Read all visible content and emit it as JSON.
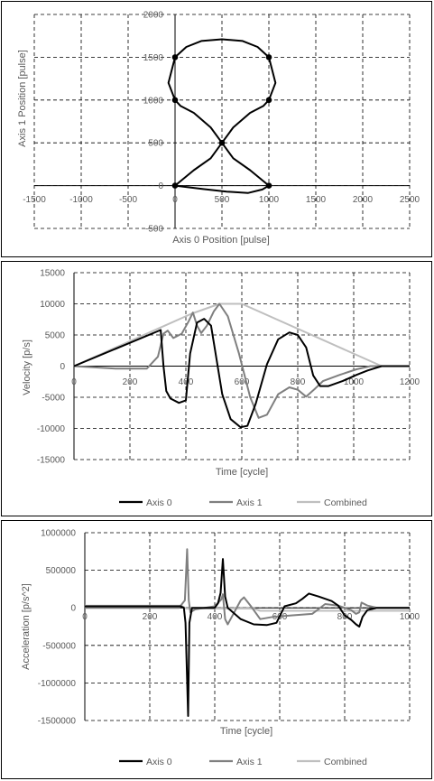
{
  "colors": {
    "axis0": "#000000",
    "axis1": "#7f7f7f",
    "combined": "#bfbfbf",
    "grid": "#000000",
    "text": "#595959"
  },
  "chart_data": [
    {
      "type": "scatter",
      "xlabel": "Axis 0 Position [pulse]",
      "ylabel": "Axis 1 Position [pulse]",
      "xlim": [
        -1500,
        2500
      ],
      "ylim": [
        -500,
        2000
      ],
      "xticks": [
        -1500,
        -1000,
        -500,
        0,
        500,
        1000,
        1500,
        2000,
        2500
      ],
      "yticks": [
        -500,
        0,
        500,
        1000,
        1500,
        2000
      ],
      "grid": true,
      "curve": [
        [
          0,
          0
        ],
        [
          300,
          -40
        ],
        [
          550,
          -70
        ],
        [
          780,
          -85
        ],
        [
          930,
          -45
        ],
        [
          1000,
          0
        ],
        [
          800,
          180
        ],
        [
          620,
          320
        ],
        [
          500,
          500
        ],
        [
          380,
          680
        ],
        [
          200,
          850
        ],
        [
          60,
          930
        ],
        [
          0,
          1000
        ],
        [
          -70,
          1200
        ],
        [
          0,
          1500
        ],
        [
          120,
          1620
        ],
        [
          280,
          1690
        ],
        [
          500,
          1710
        ],
        [
          720,
          1690
        ],
        [
          880,
          1620
        ],
        [
          1000,
          1500
        ],
        [
          1070,
          1200
        ],
        [
          1000,
          1000
        ],
        [
          940,
          930
        ],
        [
          800,
          850
        ],
        [
          620,
          680
        ],
        [
          500,
          500
        ],
        [
          380,
          320
        ],
        [
          200,
          180
        ],
        [
          0,
          0
        ]
      ],
      "markers": [
        [
          0,
          0
        ],
        [
          1000,
          0
        ],
        [
          500,
          500
        ],
        [
          0,
          1000
        ],
        [
          1000,
          1000
        ],
        [
          0,
          1500
        ],
        [
          1000,
          1500
        ]
      ]
    },
    {
      "type": "line",
      "xlabel": "Time [cycle]",
      "ylabel": "Velocity [p/s]",
      "xlim": [
        0,
        1200
      ],
      "ylim": [
        -15000,
        15000
      ],
      "xticks": [
        0,
        200,
        400,
        600,
        800,
        1000,
        1200
      ],
      "yticks": [
        -15000,
        -10000,
        -5000,
        0,
        5000,
        10000,
        15000
      ],
      "grid": true,
      "legend": "bottom",
      "series": [
        {
          "name": "Axis 0",
          "points": [
            [
              0,
              0
            ],
            [
              310,
              5800
            ],
            [
              320,
              0
            ],
            [
              330,
              -4000
            ],
            [
              345,
              -5200
            ],
            [
              375,
              -5900
            ],
            [
              400,
              -5500
            ],
            [
              415,
              2000
            ],
            [
              440,
              7000
            ],
            [
              465,
              7600
            ],
            [
              490,
              6500
            ],
            [
              510,
              1000
            ],
            [
              530,
              -4500
            ],
            [
              560,
              -8500
            ],
            [
              595,
              -9800
            ],
            [
              620,
              -9600
            ],
            [
              650,
              -6000
            ],
            [
              690,
              300
            ],
            [
              730,
              4300
            ],
            [
              770,
              5400
            ],
            [
              800,
              5000
            ],
            [
              830,
              3000
            ],
            [
              855,
              -1500
            ],
            [
              880,
              -3200
            ],
            [
              910,
              -3200
            ],
            [
              960,
              -2400
            ],
            [
              1010,
              -1400
            ],
            [
              1050,
              -700
            ],
            [
              1100,
              0
            ],
            [
              1200,
              0
            ]
          ]
        },
        {
          "name": "Axis 1",
          "points": [
            [
              0,
              0
            ],
            [
              150,
              -400
            ],
            [
              260,
              -400
            ],
            [
              300,
              1500
            ],
            [
              320,
              5200
            ],
            [
              335,
              5700
            ],
            [
              355,
              4500
            ],
            [
              385,
              5200
            ],
            [
              410,
              7200
            ],
            [
              425,
              8600
            ],
            [
              440,
              6500
            ],
            [
              455,
              5300
            ],
            [
              475,
              6500
            ],
            [
              500,
              8800
            ],
            [
              520,
              10000
            ],
            [
              550,
              8000
            ],
            [
              590,
              2000
            ],
            [
              630,
              -5000
            ],
            [
              660,
              -8300
            ],
            [
              690,
              -7800
            ],
            [
              730,
              -4500
            ],
            [
              770,
              -3400
            ],
            [
              800,
              -3800
            ],
            [
              830,
              -4900
            ],
            [
              860,
              -3700
            ],
            [
              890,
              -2400
            ],
            [
              950,
              -1400
            ],
            [
              1010,
              -500
            ],
            [
              1060,
              0
            ],
            [
              1200,
              0
            ]
          ]
        },
        {
          "name": "Combined",
          "points": [
            [
              0,
              0
            ],
            [
              310,
              6200
            ],
            [
              420,
              8400
            ],
            [
              520,
              10000
            ],
            [
              600,
              10000
            ],
            [
              1100,
              0
            ],
            [
              1200,
              0
            ]
          ]
        }
      ]
    },
    {
      "type": "line",
      "xlabel": "Time [cycle]",
      "ylabel": "Acceleration [p/s^2]",
      "xlim": [
        0,
        1000
      ],
      "ylim": [
        -1500000,
        1000000
      ],
      "xticks": [
        0,
        200,
        400,
        600,
        800,
        1000
      ],
      "yticks": [
        -1500000,
        -1000000,
        -500000,
        0,
        500000,
        1000000
      ],
      "grid": true,
      "legend": "bottom",
      "series": [
        {
          "name": "Axis 0",
          "points": [
            [
              0,
              20000
            ],
            [
              295,
              20000
            ],
            [
              305,
              0
            ],
            [
              310,
              -200000
            ],
            [
              318,
              -1440000
            ],
            [
              322,
              -200000
            ],
            [
              330,
              0
            ],
            [
              400,
              0
            ],
            [
              410,
              60000
            ],
            [
              418,
              200000
            ],
            [
              425,
              650000
            ],
            [
              432,
              150000
            ],
            [
              440,
              0
            ],
            [
              480,
              -150000
            ],
            [
              520,
              -220000
            ],
            [
              560,
              -230000
            ],
            [
              590,
              -200000
            ],
            [
              615,
              20000
            ],
            [
              650,
              60000
            ],
            [
              670,
              120000
            ],
            [
              690,
              190000
            ],
            [
              720,
              150000
            ],
            [
              760,
              90000
            ],
            [
              780,
              30000
            ],
            [
              800,
              -100000
            ],
            [
              820,
              -160000
            ],
            [
              835,
              -220000
            ],
            [
              845,
              -250000
            ],
            [
              855,
              -120000
            ],
            [
              870,
              -30000
            ],
            [
              900,
              0
            ],
            [
              1000,
              0
            ]
          ]
        },
        {
          "name": "Axis 1",
          "points": [
            [
              0,
              0
            ],
            [
              290,
              0
            ],
            [
              308,
              100000
            ],
            [
              315,
              780000
            ],
            [
              320,
              100000
            ],
            [
              325,
              -60000
            ],
            [
              340,
              -20000
            ],
            [
              400,
              20000
            ],
            [
              420,
              110000
            ],
            [
              425,
              180000
            ],
            [
              432,
              -150000
            ],
            [
              440,
              -220000
            ],
            [
              460,
              -60000
            ],
            [
              480,
              100000
            ],
            [
              490,
              140000
            ],
            [
              510,
              30000
            ],
            [
              540,
              -150000
            ],
            [
              580,
              -120000
            ],
            [
              640,
              -100000
            ],
            [
              700,
              -80000
            ],
            [
              740,
              50000
            ],
            [
              780,
              30000
            ],
            [
              820,
              -30000
            ],
            [
              835,
              -80000
            ],
            [
              845,
              -60000
            ],
            [
              852,
              70000
            ],
            [
              870,
              30000
            ],
            [
              900,
              0
            ],
            [
              1000,
              0
            ]
          ]
        },
        {
          "name": "Combined",
          "points": [
            [
              0,
              30000
            ],
            [
              295,
              30000
            ],
            [
              305,
              10000
            ],
            [
              310,
              -10000
            ],
            [
              420,
              -10000
            ],
            [
              520,
              -10000
            ],
            [
              540,
              -40000
            ],
            [
              1000,
              -40000
            ]
          ]
        }
      ]
    }
  ]
}
